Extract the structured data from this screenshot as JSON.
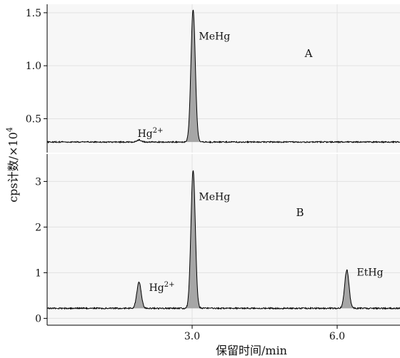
{
  "chart_data": {
    "type": "line",
    "xlabel": "保留时间/min",
    "ylabel_main": "cps计数/×10",
    "ylabel_exp": "4",
    "x_ticks": [
      "3.0",
      "6.0"
    ],
    "xlim": [
      0.0,
      7.3
    ],
    "panels": [
      {
        "panel_label": "A",
        "ylim": [
          0.18,
          1.58
        ],
        "y_ticks": [
          "0.5",
          "1.0",
          "1.5"
        ],
        "baseline": 0.28,
        "peaks": [
          {
            "name": "Hg",
            "sup": "2+",
            "rt": 1.9,
            "height": 0.3,
            "filled": false
          },
          {
            "name": "MeHg",
            "sup": "",
            "rt": 3.02,
            "height": 1.53,
            "filled": true
          }
        ]
      },
      {
        "panel_label": "B",
        "ylim": [
          -0.15,
          3.6
        ],
        "y_ticks": [
          "0",
          "1",
          "2",
          "3"
        ],
        "baseline": 0.22,
        "peaks": [
          {
            "name": "Hg",
            "sup": "2+",
            "rt": 1.9,
            "height": 0.79,
            "filled": true
          },
          {
            "name": "MeHg",
            "sup": "",
            "rt": 3.02,
            "height": 3.25,
            "filled": true
          },
          {
            "name": "EtHg",
            "sup": "",
            "rt": 6.2,
            "height": 1.06,
            "filled": true
          }
        ]
      }
    ]
  }
}
